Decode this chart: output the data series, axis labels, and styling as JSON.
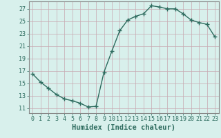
{
  "x": [
    0,
    1,
    2,
    3,
    4,
    5,
    6,
    7,
    8,
    9,
    10,
    11,
    12,
    13,
    14,
    15,
    16,
    17,
    18,
    19,
    20,
    21,
    22,
    23
  ],
  "y": [
    16.5,
    15.2,
    14.2,
    13.2,
    12.5,
    12.2,
    11.8,
    11.2,
    11.3,
    16.8,
    20.2,
    23.5,
    25.2,
    25.8,
    26.2,
    27.5,
    27.3,
    27.0,
    27.0,
    26.2,
    25.2,
    24.8,
    24.5,
    22.5
  ],
  "line_color": "#2d6b5e",
  "marker": ".",
  "marker_size": 4,
  "bg_color": "#d8f0ec",
  "grid_color": "#c8a8b0",
  "tick_color": "#2d6b5e",
  "axis_color": "#888888",
  "xlabel": "Humidex (Indice chaleur)",
  "xlabel_fontsize": 7.5,
  "yticks": [
    11,
    13,
    15,
    17,
    19,
    21,
    23,
    25,
    27
  ],
  "xticks": [
    0,
    1,
    2,
    3,
    4,
    5,
    6,
    7,
    8,
    9,
    10,
    11,
    12,
    13,
    14,
    15,
    16,
    17,
    18,
    19,
    20,
    21,
    22,
    23
  ],
  "xlim": [
    -0.5,
    23.5
  ],
  "ylim": [
    10.2,
    28.2
  ],
  "tick_fontsize": 6,
  "line_width": 1.0
}
